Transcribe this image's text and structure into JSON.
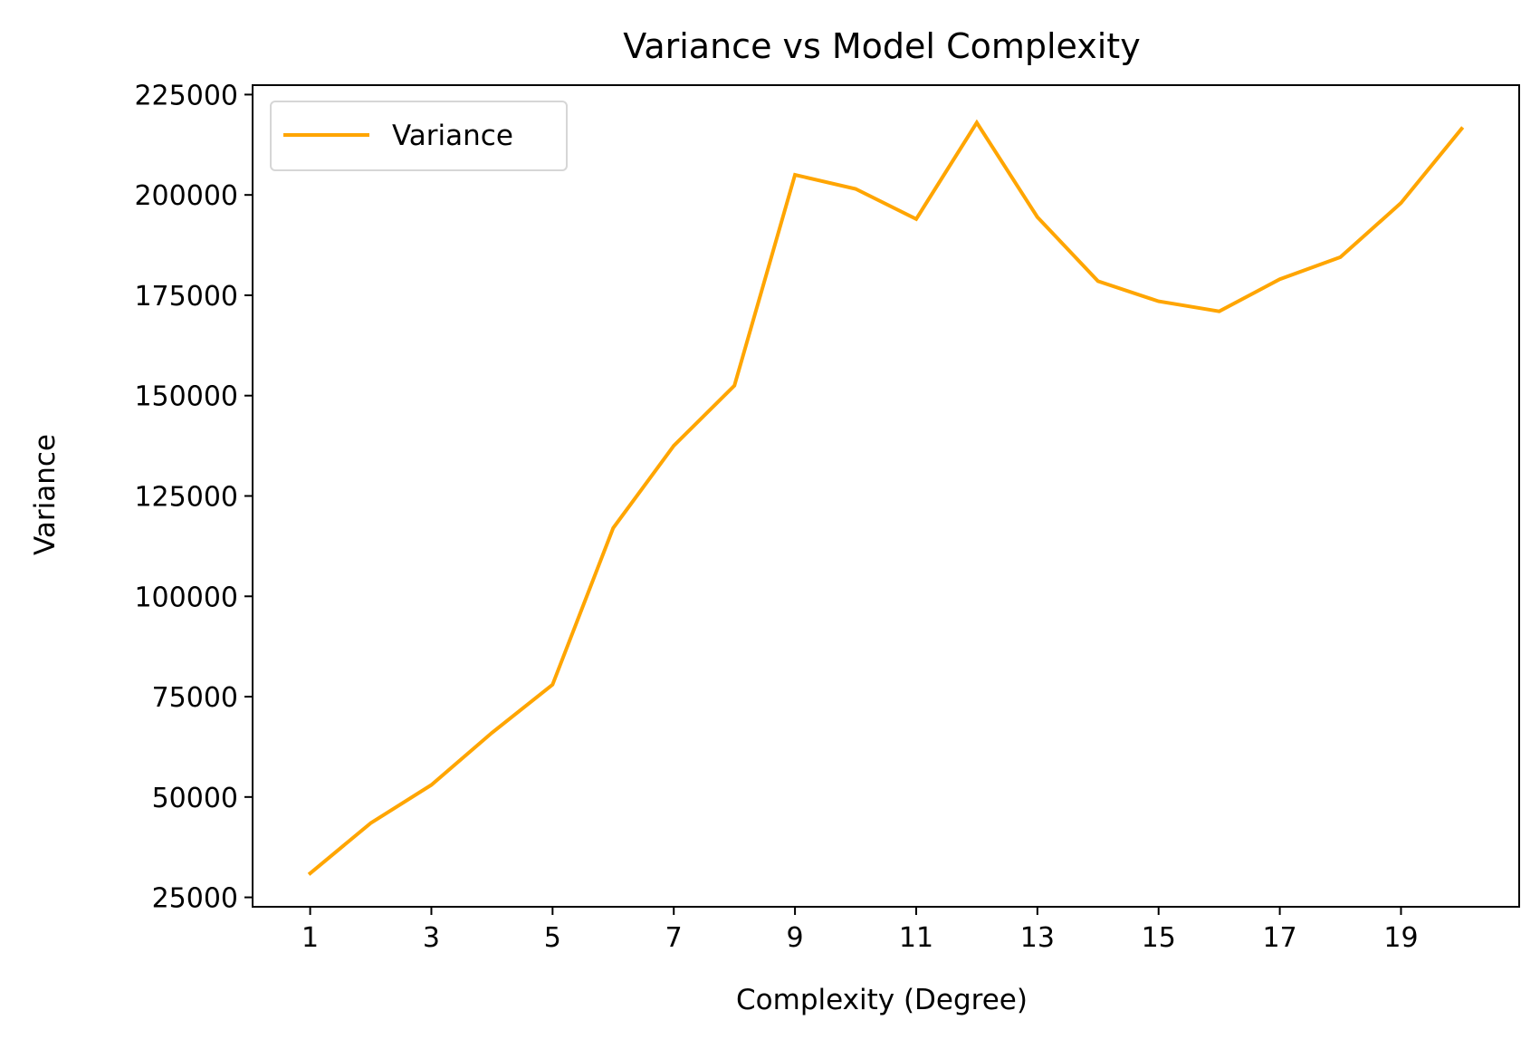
{
  "chart_data": {
    "type": "line",
    "title": "Variance vs Model Complexity",
    "xlabel": "Complexity (Degree)",
    "ylabel": "Variance",
    "x": [
      1,
      2,
      3,
      4,
      5,
      6,
      7,
      8,
      9,
      10,
      11,
      12,
      13,
      14,
      15,
      16,
      17,
      18,
      19,
      20
    ],
    "series": [
      {
        "name": "Variance",
        "color": "#FFA500",
        "values": [
          31000,
          43500,
          53000,
          66000,
          78000,
          117000,
          137500,
          152500,
          205000,
          201500,
          194000,
          218000,
          194500,
          178500,
          173500,
          171000,
          179000,
          184500,
          198000,
          216500
        ]
      }
    ],
    "xticks": [
      "1",
      "3",
      "5",
      "7",
      "9",
      "11",
      "13",
      "15",
      "17",
      "19"
    ],
    "yticks": [
      "25000",
      "50000",
      "75000",
      "100000",
      "125000",
      "150000",
      "175000",
      "200000",
      "225000"
    ],
    "xlim": [
      0.05,
      20.95
    ],
    "ylim": [
      22650,
      227350
    ],
    "grid": false,
    "legend_position": "top-left"
  }
}
